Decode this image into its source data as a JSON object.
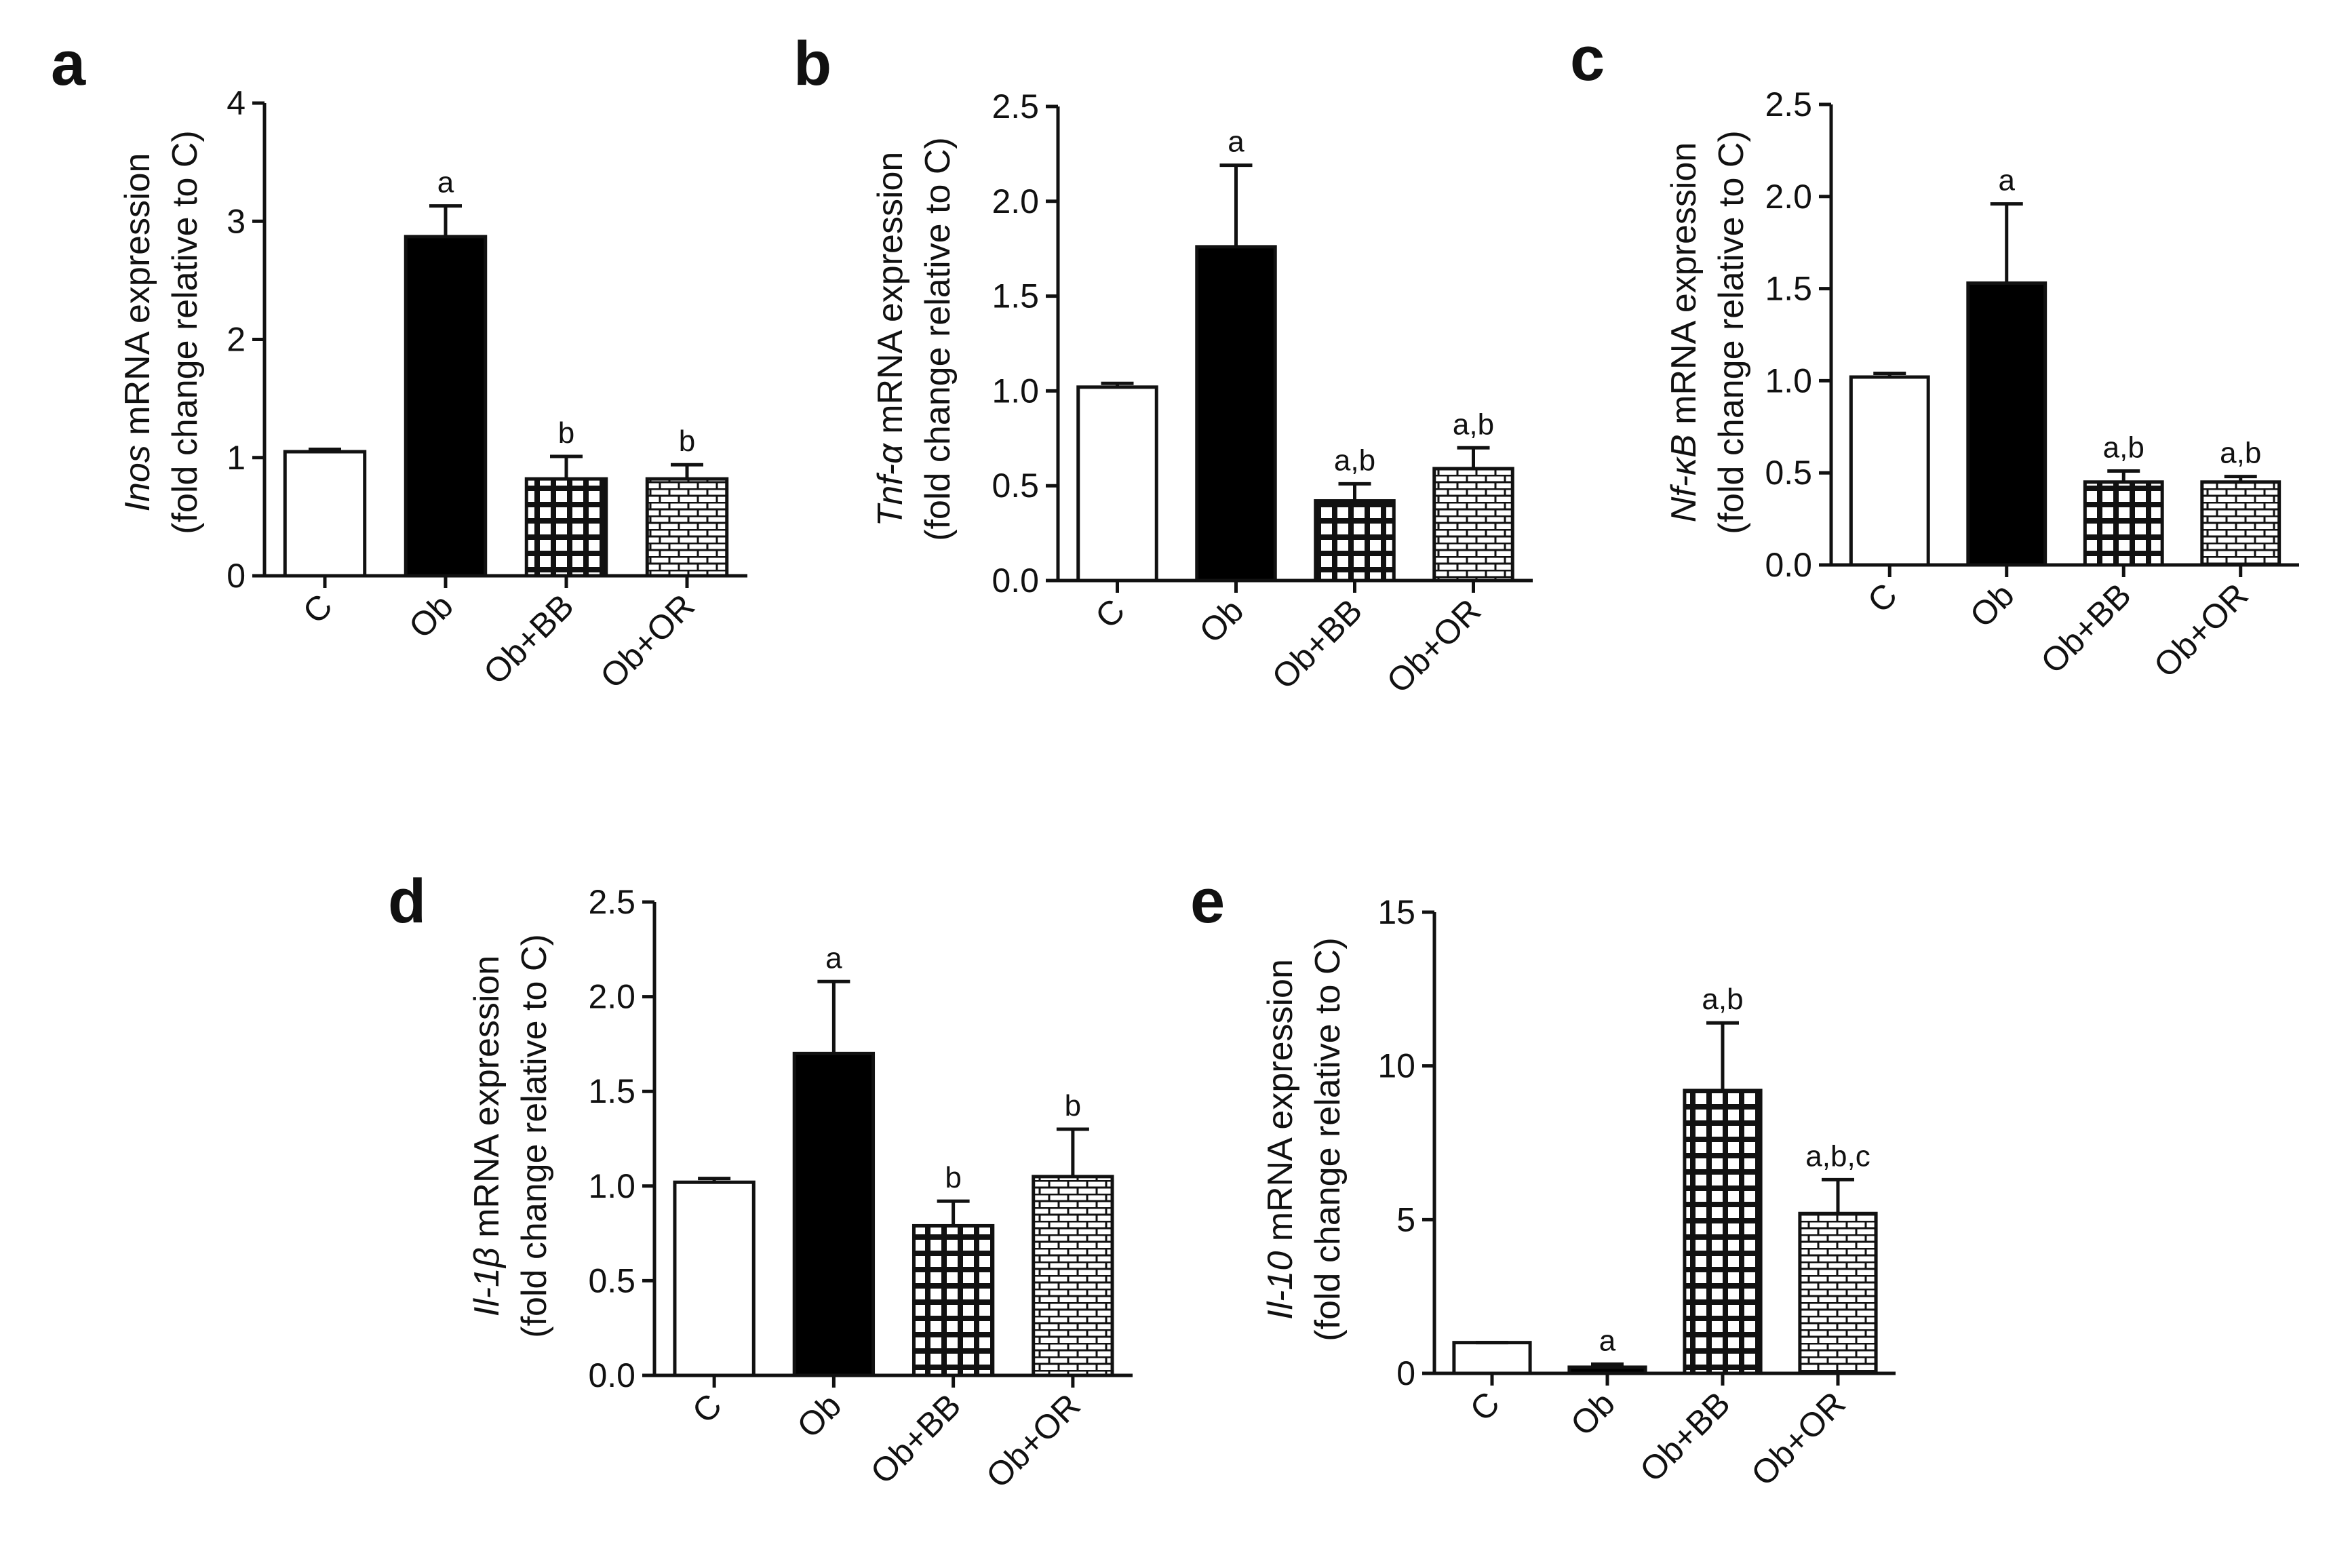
{
  "figure": {
    "panels": [
      {
        "letter": "a",
        "gene": "Inos",
        "ylabel_rest": " mRNA expression",
        "ylabel_line2": "(fold change relative to C)"
      },
      {
        "letter": "b",
        "gene": "Tnf-α",
        "ylabel_rest": " mRNA expression",
        "ylabel_line2": "(fold change relative to C)"
      },
      {
        "letter": "c",
        "gene": "Nf-κB",
        "ylabel_rest": " mRNA expression",
        "ylabel_line2": "(fold change relative to C)"
      },
      {
        "letter": "d",
        "gene": "Il-1β",
        "ylabel_rest": " mRNA expression",
        "ylabel_line2": "(fold change relative to C)"
      },
      {
        "letter": "e",
        "gene": "Il-10",
        "ylabel_rest": " mRNA expression",
        "ylabel_line2": "(fold change relative to C)"
      }
    ]
  },
  "chart_data": [
    {
      "type": "bar",
      "title": "a",
      "ylabel": "Inos mRNA expression (fold change relative to C)",
      "categories": [
        "C",
        "Ob",
        "Ob+BB",
        "Ob+OR"
      ],
      "values": [
        1.05,
        2.87,
        0.82,
        0.82
      ],
      "errors": [
        0.02,
        0.26,
        0.19,
        0.12
      ],
      "annotations": [
        "",
        "a",
        "b",
        "b"
      ],
      "ylim": [
        0,
        4
      ],
      "yticks": [
        0,
        1,
        2,
        3,
        4
      ],
      "ytick_labels": [
        "0",
        "1",
        "2",
        "3",
        "4"
      ]
    },
    {
      "type": "bar",
      "title": "b",
      "ylabel": "Tnf-α mRNA expression (fold change relative to C)",
      "categories": [
        "C",
        "Ob",
        "Ob+BB",
        "Ob+OR"
      ],
      "values": [
        1.02,
        1.76,
        0.42,
        0.59
      ],
      "errors": [
        0.02,
        0.43,
        0.09,
        0.11
      ],
      "annotations": [
        "",
        "a",
        "a,b",
        "a,b"
      ],
      "ylim": [
        0,
        2.5
      ],
      "yticks": [
        0,
        0.5,
        1.0,
        1.5,
        2.0,
        2.5
      ],
      "ytick_labels": [
        "0.0",
        "0.5",
        "1.0",
        "1.5",
        "2.0",
        "2.5"
      ]
    },
    {
      "type": "bar",
      "title": "c",
      "ylabel": "Nf-κB mRNA expression (fold change relative to C)",
      "categories": [
        "C",
        "Ob",
        "Ob+BB",
        "Ob+OR"
      ],
      "values": [
        1.02,
        1.53,
        0.45,
        0.45
      ],
      "errors": [
        0.02,
        0.43,
        0.06,
        0.03
      ],
      "annotations": [
        "",
        "a",
        "a,b",
        "a,b"
      ],
      "ylim": [
        0,
        2.5
      ],
      "yticks": [
        0,
        0.5,
        1.0,
        1.5,
        2.0,
        2.5
      ],
      "ytick_labels": [
        "0.0",
        "0.5",
        "1.0",
        "1.5",
        "2.0",
        "2.5"
      ]
    },
    {
      "type": "bar",
      "title": "d",
      "ylabel": "Il-1β mRNA expression (fold change relative to C)",
      "categories": [
        "C",
        "Ob",
        "Ob+BB",
        "Ob+OR"
      ],
      "values": [
        1.02,
        1.7,
        0.79,
        1.05
      ],
      "errors": [
        0.02,
        0.38,
        0.13,
        0.25
      ],
      "annotations": [
        "",
        "a",
        "b",
        "b"
      ],
      "ylim": [
        0,
        2.5
      ],
      "yticks": [
        0,
        0.5,
        1.0,
        1.5,
        2.0,
        2.5
      ],
      "ytick_labels": [
        "0.0",
        "0.5",
        "1.0",
        "1.5",
        "2.0",
        "2.5"
      ]
    },
    {
      "type": "bar",
      "title": "e",
      "ylabel": "Il-10 mRNA expression (fold change relative to C)",
      "categories": [
        "C",
        "Ob",
        "Ob+BB",
        "Ob+OR"
      ],
      "values": [
        1.0,
        0.2,
        9.2,
        5.2
      ],
      "errors": [
        0.0,
        0.1,
        2.2,
        1.1
      ],
      "annotations": [
        "",
        "a",
        "a,b",
        "a,b,c"
      ],
      "ylim": [
        0,
        15
      ],
      "yticks": [
        0,
        5,
        10,
        15
      ],
      "ytick_labels": [
        "0",
        "5",
        "10",
        "15"
      ]
    }
  ]
}
